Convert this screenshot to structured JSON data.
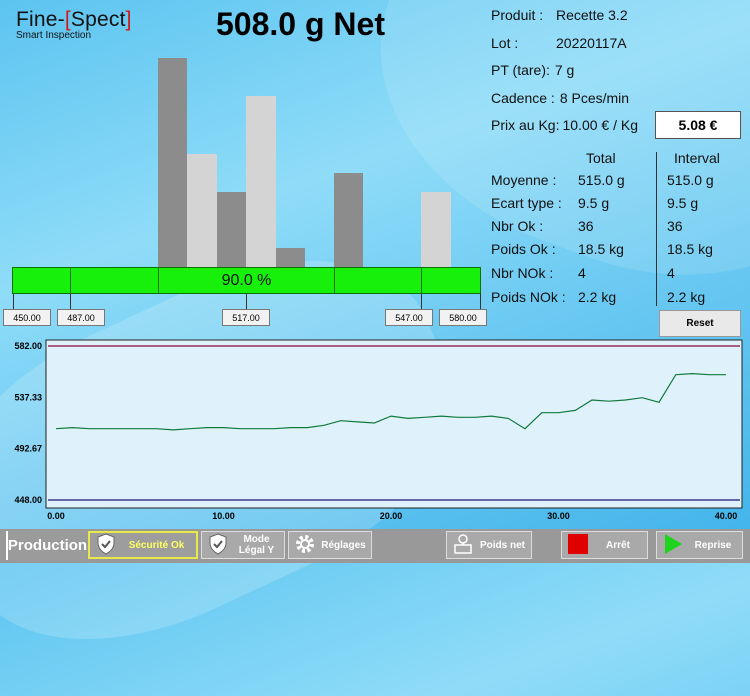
{
  "logo": {
    "main_a": "Fine-",
    "bracket_open": "[",
    "main_b": "Spect",
    "bracket_close": "]",
    "subtitle": "Smart Inspection"
  },
  "weight_display": "508.0 g Net",
  "info": [
    {
      "label": "Produit :",
      "value": "Recette 3.2"
    },
    {
      "label": "Lot :",
      "value": "20220117A"
    },
    {
      "label": "PT (tare):",
      "value": "7 g"
    },
    {
      "label": "Cadence :",
      "value": "8 Pces/min"
    },
    {
      "label": "Prix au Kg:",
      "value": "10.00 € / Kg"
    }
  ],
  "price": "5.08 €",
  "stats": {
    "head_total": "Total",
    "head_interval": "Interval",
    "rows": [
      {
        "label": "Moyenne :",
        "total": "515.0 g",
        "interval": "515.0 g"
      },
      {
        "label": "Ecart type :",
        "total": "9.5 g",
        "interval": "9.5 g"
      },
      {
        "label": "Nbr Ok :",
        "total": "36",
        "interval": "36"
      },
      {
        "label": "Poids Ok :",
        "total": "18.5 kg",
        "interval": "18.5 kg"
      },
      {
        "label": "Nbr NOk :",
        "total": "4",
        "interval": "4"
      },
      {
        "label": "Poids NOk :",
        "total": "2.2 kg",
        "interval": "2.2 kg"
      }
    ]
  },
  "reset_label": "Reset",
  "histogram": {
    "percent_label": "90.0 %",
    "ticks": [
      "450.00",
      "487.00",
      "517.00",
      "547.00",
      "580.00"
    ],
    "bars": [
      {
        "color": "#8c8c8c",
        "level": 1.0
      },
      {
        "color": "#d4d4d4",
        "level": 0.54
      },
      {
        "color": "#8c8c8c",
        "level": 0.36
      },
      {
        "color": "#d4d4d4",
        "level": 0.82
      },
      {
        "color": "#8c8c8c",
        "level": 0.09
      },
      {
        "color": "#8c8c8c",
        "level": 0.45
      },
      {
        "color": "#d4d4d4",
        "level": 0.36
      }
    ]
  },
  "chart_data": {
    "type": "line",
    "xlim": [
      0,
      40
    ],
    "ylim": [
      448,
      582
    ],
    "x_ticks": [
      "0.00",
      "10.00",
      "20.00",
      "30.00",
      "40.00"
    ],
    "y_ticks": [
      "582.00",
      "537.33",
      "492.67",
      "448.00"
    ],
    "x": [
      0,
      1,
      2,
      3,
      4,
      5,
      6,
      7,
      8,
      9,
      10,
      11,
      12,
      13,
      14,
      15,
      16,
      17,
      18,
      19,
      20,
      21,
      22,
      23,
      24,
      25,
      26,
      27,
      28,
      29,
      30,
      31,
      32,
      33,
      34,
      35,
      36,
      37,
      38,
      39,
      40
    ],
    "y": [
      510,
      511,
      510,
      510,
      510,
      510,
      510,
      509,
      510,
      511,
      511,
      510,
      510,
      510,
      511,
      511,
      513,
      517,
      516,
      515,
      521,
      519,
      520,
      521,
      520,
      520,
      521,
      519,
      510,
      524,
      524,
      526,
      535,
      534,
      535,
      537,
      533,
      557,
      558,
      557,
      557
    ]
  },
  "bottom": {
    "production": "Production",
    "securite": "Sécurité Ok",
    "mode": "Mode\nLégal Y",
    "reglages": "Réglages",
    "poids_net": "Poids net",
    "arret": "Arrêt",
    "reprise": "Reprise"
  }
}
